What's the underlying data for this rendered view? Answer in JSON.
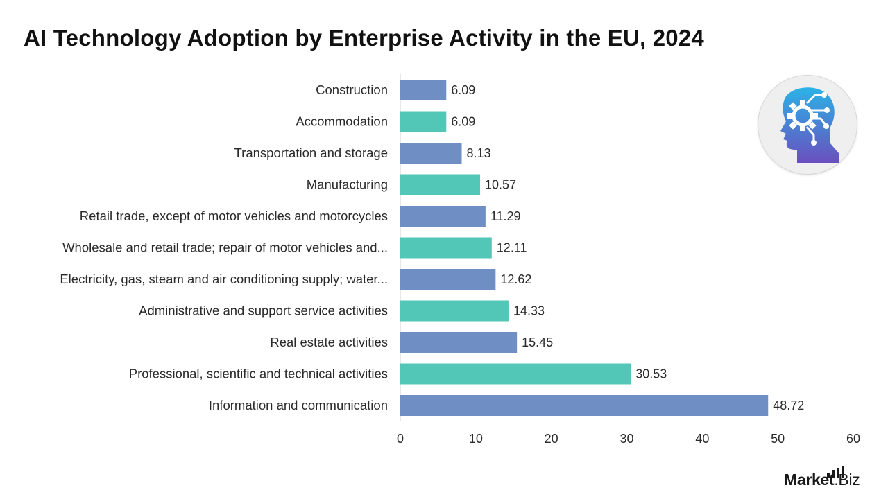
{
  "title": "AI Technology Adoption by Enterprise Activity in the EU, 2024",
  "brand": {
    "name_bold": "Market",
    "name_rest": ".Biz"
  },
  "logo": {
    "icon": "ai-head-gear-circuit-icon"
  },
  "colors": {
    "blue": "#6f8fc4",
    "teal": "#52c7b8",
    "axis": "#cfcfcf",
    "logo_gradient_top": "#2bb3e6",
    "logo_gradient_bottom": "#6a4fbf"
  },
  "chart_data": {
    "type": "bar",
    "orientation": "horizontal",
    "title": "AI Technology Adoption by Enterprise Activity in the EU, 2024",
    "xlabel": "",
    "ylabel": "",
    "xlim": [
      0,
      60
    ],
    "xticks": [
      0,
      10,
      20,
      30,
      40,
      50,
      60
    ],
    "grid": false,
    "legend": "none",
    "bar_colors_alternating": [
      "#6f8fc4",
      "#52c7b8"
    ],
    "categories": [
      "Construction",
      "Accommodation",
      "Transportation and storage",
      "Manufacturing",
      "Retail trade, except of motor vehicles and motorcycles",
      "Wholesale and retail trade; repair of motor vehicles and...",
      "Electricity, gas, steam and air conditioning supply; water...",
      "Administrative and support service activities",
      "Real estate activities",
      "Professional, scientific and technical activities",
      "Information and communication"
    ],
    "values": [
      6.09,
      6.09,
      8.13,
      10.57,
      11.29,
      12.11,
      12.62,
      14.33,
      15.45,
      30.53,
      48.72
    ],
    "value_labels": [
      "6.09",
      "6.09",
      "8.13",
      "10.57",
      "11.29",
      "12.11",
      "12.62",
      "14.33",
      "15.45",
      "30.53",
      "48.72"
    ]
  }
}
